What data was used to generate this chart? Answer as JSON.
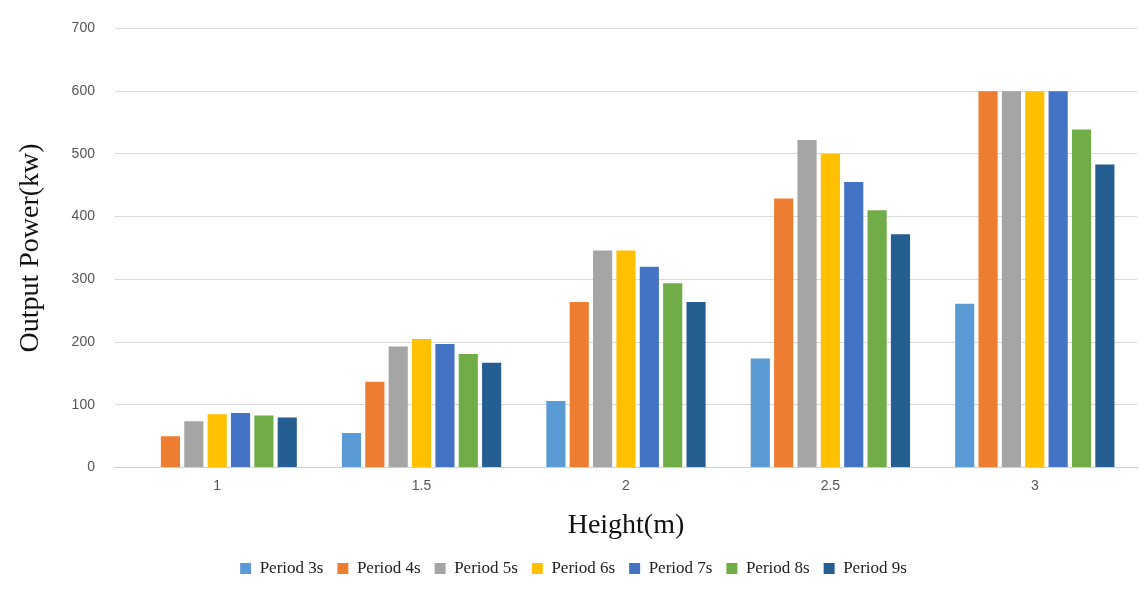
{
  "chart_data": {
    "type": "bar",
    "xlabel": "Height(m)",
    "ylabel": "Output Power(kw)",
    "categories": [
      "1",
      "1.5",
      "2",
      "2.5",
      "3"
    ],
    "series": [
      {
        "name": "Period 3s",
        "color": "#5b9bd5",
        "values": [
          null,
          55,
          106,
          174,
          261
        ]
      },
      {
        "name": "Period 4s",
        "color": "#ed7d31",
        "values": [
          50,
          137,
          264,
          429,
          600
        ]
      },
      {
        "name": "Period 5s",
        "color": "#a5a5a5",
        "values": [
          74,
          193,
          346,
          522,
          600
        ]
      },
      {
        "name": "Period 6s",
        "color": "#ffc000",
        "values": [
          85,
          205,
          346,
          500,
          600
        ]
      },
      {
        "name": "Period 7s",
        "color": "#4472c4",
        "values": [
          87,
          197,
          320,
          455,
          600
        ]
      },
      {
        "name": "Period 8s",
        "color": "#70ad47",
        "values": [
          83,
          181,
          294,
          410,
          539
        ]
      },
      {
        "name": "Period 9s",
        "color": "#255e91",
        "values": [
          80,
          167,
          264,
          372,
          483
        ]
      }
    ],
    "ylim": [
      0,
      700
    ],
    "yticks": [
      0,
      100,
      200,
      300,
      400,
      500,
      600,
      700
    ],
    "grid": "y",
    "legend": "bottom"
  }
}
